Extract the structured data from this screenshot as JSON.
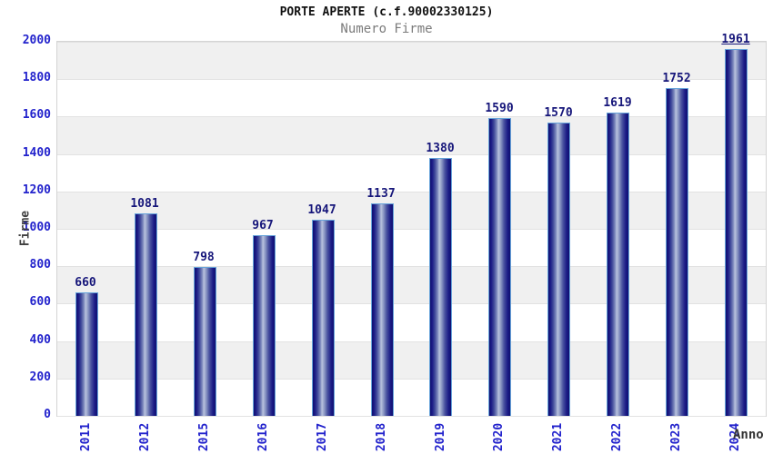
{
  "header": {
    "title": "PORTE APERTE (c.f.90002330125)",
    "subtitle": "Numero Firme"
  },
  "chart_data": {
    "type": "bar",
    "title": "PORTE APERTE (c.f.90002330125)",
    "subtitle": "Numero Firme",
    "xlabel": "Anno",
    "ylabel": "Firme",
    "categories": [
      "2011",
      "2012",
      "2015",
      "2016",
      "2017",
      "2018",
      "2019",
      "2020",
      "2021",
      "2022",
      "2023",
      "2024"
    ],
    "values": [
      660,
      1081,
      798,
      967,
      1047,
      1137,
      1380,
      1590,
      1570,
      1619,
      1752,
      1961
    ],
    "ylim": [
      0,
      2000
    ],
    "ytick_step": 200,
    "yticks": [
      0,
      200,
      400,
      600,
      800,
      1000,
      1200,
      1400,
      1600,
      1800,
      2000
    ],
    "grid": "horizontal gridlines with alternating gray/white bands, top band gray",
    "legend_position": "none",
    "x_tick_rotation_deg": -90,
    "bar_labels_shown": true,
    "colors": {
      "tick_label": "#2222cc",
      "bar_value_label": "#16167a",
      "bar_edge_dark": "#101070",
      "bar_center_highlight": "#b9c2de",
      "bar_border": "#66a3da",
      "band_gray": "#f0f0f0",
      "band_white": "#ffffff",
      "gridline": "#e2e2e2",
      "title_color": "#111111",
      "subtitle_color": "#7b7b7b"
    }
  }
}
